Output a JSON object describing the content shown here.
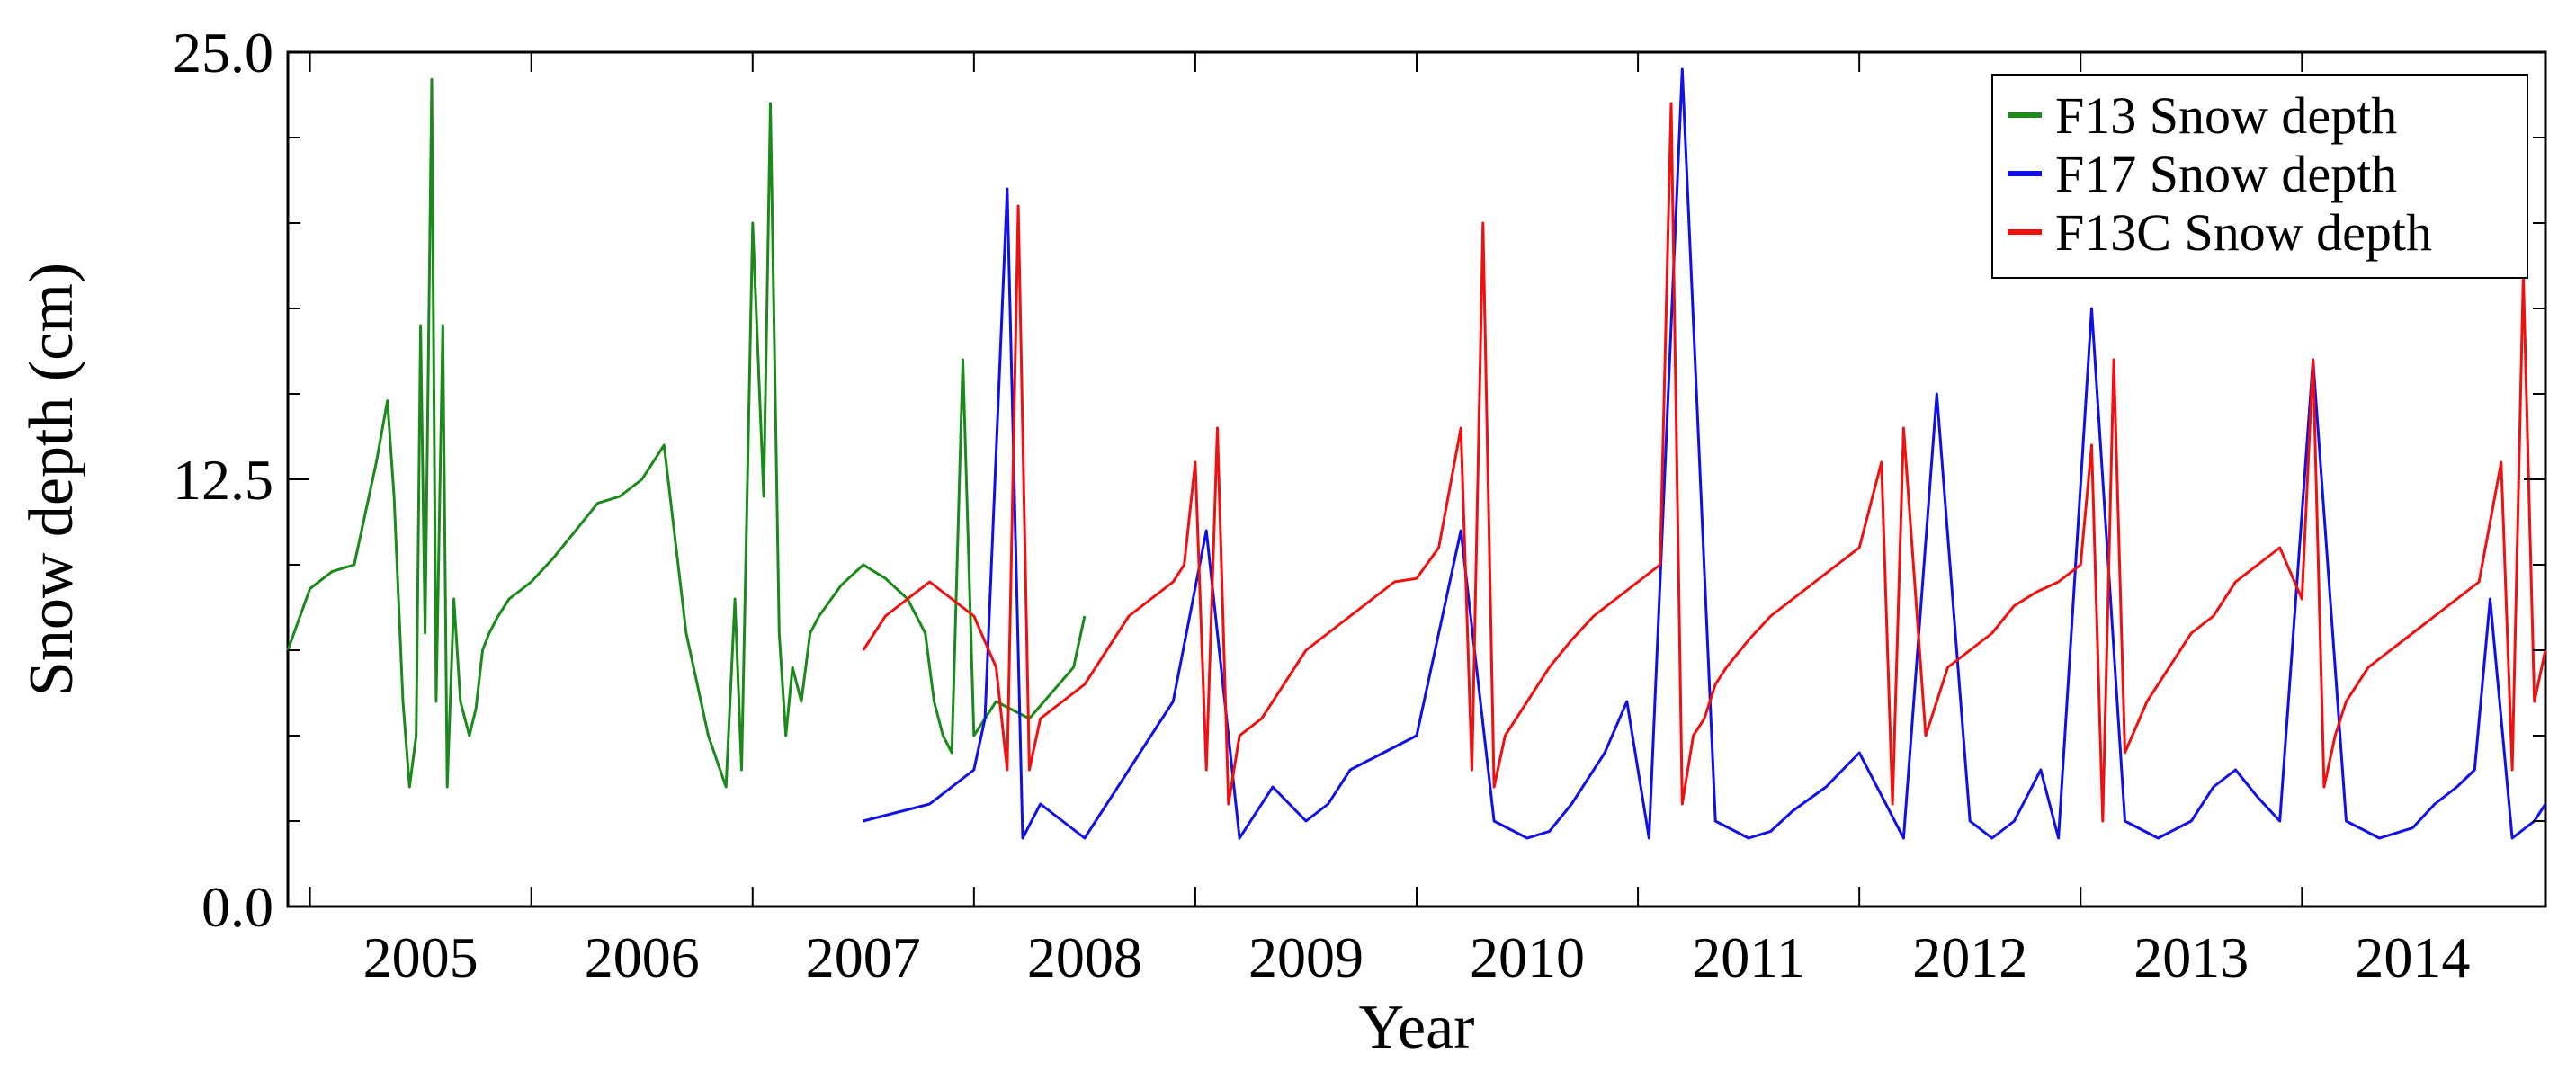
{
  "chart_data": {
    "type": "line",
    "title": "",
    "xlabel": "Year",
    "ylabel": "Snow depth (cm)",
    "xlim": [
      2004.4,
      2014.6
    ],
    "ylim": [
      0.0,
      25.0
    ],
    "y_ticks": [
      0.0,
      12.5,
      25.0
    ],
    "y_tick_labels": [
      "0.0",
      "12.5",
      "25.0"
    ],
    "x_tick_labels": [
      "2005",
      "2006",
      "2007",
      "2008",
      "2009",
      "2010",
      "2011",
      "2012",
      "2013",
      "2014"
    ],
    "x_tick_positions": [
      2005,
      2006,
      2007,
      2008,
      2009,
      2010,
      2011,
      2012,
      2013,
      2014
    ],
    "legend": {
      "position": "top-right",
      "entries": [
        "F13 Snow depth",
        "F17 Snow depth",
        "F13C Snow depth"
      ]
    },
    "series": [
      {
        "name": "F13 Snow depth",
        "color": "#1a8a1a",
        "x": [
          2004.4,
          2004.5,
          2004.6,
          2004.7,
          2004.8,
          2004.85,
          2004.88,
          2004.92,
          2004.95,
          2004.98,
          2005.0,
          2005.02,
          2005.05,
          2005.07,
          2005.1,
          2005.12,
          2005.15,
          2005.18,
          2005.22,
          2005.25,
          2005.28,
          2005.31,
          2005.35,
          2005.4,
          2005.5,
          2005.6,
          2005.7,
          2005.8,
          2005.9,
          2006.0,
          2006.1,
          2006.2,
          2006.3,
          2006.38,
          2006.42,
          2006.45,
          2006.5,
          2006.55,
          2006.58,
          2006.62,
          2006.65,
          2006.68,
          2006.72,
          2006.76,
          2006.8,
          2006.9,
          2007.0,
          2007.1,
          2007.2,
          2007.28,
          2007.32,
          2007.36,
          2007.4,
          2007.45,
          2007.5,
          2007.6,
          2007.75,
          2007.95,
          2008.0
        ],
        "y": [
          7.5,
          9.3,
          9.8,
          10.0,
          13.0,
          14.8,
          12.0,
          6.0,
          3.5,
          5.0,
          17.0,
          8.0,
          24.2,
          6.0,
          17.0,
          3.5,
          9.0,
          6.0,
          5.0,
          5.8,
          7.5,
          8.0,
          8.5,
          9.0,
          9.5,
          10.2,
          11.0,
          11.8,
          12.0,
          12.5,
          13.5,
          8.0,
          5.0,
          3.5,
          9.0,
          4.0,
          20.0,
          12.0,
          23.5,
          8.0,
          5.0,
          7.0,
          6.0,
          8.0,
          8.5,
          9.4,
          10.0,
          9.6,
          9.0,
          8.0,
          6.0,
          5.0,
          4.5,
          16.0,
          5.0,
          6.0,
          5.5,
          7.0,
          8.5
        ]
      },
      {
        "name": "F17 Snow depth",
        "color": "#1010e8",
        "x": [
          2007.0,
          2007.3,
          2007.5,
          2007.55,
          2007.65,
          2007.72,
          2007.8,
          2007.9,
          2008.0,
          2008.1,
          2008.2,
          2008.3,
          2008.4,
          2008.55,
          2008.7,
          2008.85,
          2009.0,
          2009.1,
          2009.2,
          2009.35,
          2009.5,
          2009.7,
          2009.85,
          2010.0,
          2010.1,
          2010.2,
          2010.25,
          2010.3,
          2010.35,
          2010.45,
          2010.55,
          2010.7,
          2010.85,
          2011.0,
          2011.1,
          2011.2,
          2011.35,
          2011.5,
          2011.7,
          2011.85,
          2012.0,
          2012.1,
          2012.2,
          2012.28,
          2012.32,
          2012.4,
          2012.55,
          2012.7,
          2012.85,
          2013.0,
          2013.1,
          2013.2,
          2013.3,
          2013.4,
          2013.55,
          2013.7,
          2013.85,
          2014.0,
          2014.1,
          2014.2,
          2014.28,
          2014.35,
          2014.45,
          2014.55,
          2014.6
        ],
        "y": [
          2.5,
          3.0,
          4.0,
          5.5,
          21.0,
          2.0,
          3.0,
          2.5,
          2.0,
          3.0,
          4.0,
          5.0,
          6.0,
          11.0,
          2.0,
          3.5,
          2.5,
          3.0,
          4.0,
          4.5,
          5.0,
          11.0,
          2.5,
          2.0,
          2.2,
          3.0,
          3.5,
          4.0,
          4.5,
          6.0,
          2.0,
          24.5,
          2.5,
          2.0,
          2.2,
          2.8,
          3.5,
          4.5,
          2.0,
          15.0,
          2.5,
          2.0,
          2.5,
          3.5,
          4.0,
          2.0,
          17.5,
          2.5,
          2.0,
          2.5,
          3.5,
          4.0,
          3.2,
          2.5,
          16.0,
          2.5,
          2.0,
          2.3,
          3.0,
          3.5,
          4.0,
          9.0,
          2.0,
          2.5,
          3.0
        ]
      },
      {
        "name": "F13C Snow depth",
        "color": "#f01010",
        "x": [
          2007.0,
          2007.1,
          2007.2,
          2007.3,
          2007.4,
          2007.5,
          2007.6,
          2007.65,
          2007.7,
          2007.75,
          2007.8,
          2007.9,
          2008.0,
          2008.1,
          2008.2,
          2008.3,
          2008.4,
          2008.45,
          2008.5,
          2008.55,
          2008.6,
          2008.65,
          2008.7,
          2008.8,
          2008.9,
          2009.0,
          2009.1,
          2009.2,
          2009.3,
          2009.4,
          2009.5,
          2009.6,
          2009.7,
          2009.75,
          2009.8,
          2009.85,
          2009.9,
          2010.0,
          2010.1,
          2010.2,
          2010.3,
          2010.4,
          2010.5,
          2010.6,
          2010.65,
          2010.7,
          2010.75,
          2010.8,
          2010.85,
          2010.9,
          2011.0,
          2011.1,
          2011.2,
          2011.3,
          2011.4,
          2011.5,
          2011.6,
          2011.65,
          2011.7,
          2011.8,
          2011.85,
          2011.9,
          2012.0,
          2012.1,
          2012.2,
          2012.3,
          2012.4,
          2012.5,
          2012.55,
          2012.6,
          2012.65,
          2012.7,
          2012.8,
          2012.9,
          2013.0,
          2013.1,
          2013.2,
          2013.3,
          2013.4,
          2013.5,
          2013.55,
          2013.6,
          2013.65,
          2013.7,
          2013.8,
          2013.9,
          2014.0,
          2014.1,
          2014.2,
          2014.3,
          2014.4,
          2014.45,
          2014.5,
          2014.55,
          2014.6
        ],
        "y": [
          7.5,
          8.5,
          9.0,
          9.5,
          9.0,
          8.5,
          7.0,
          4.0,
          20.5,
          4.0,
          5.5,
          6.0,
          6.5,
          7.5,
          8.5,
          9.0,
          9.5,
          10.0,
          13.0,
          4.0,
          14.0,
          3.0,
          5.0,
          5.5,
          6.5,
          7.5,
          8.0,
          8.5,
          9.0,
          9.5,
          9.6,
          10.5,
          14.0,
          4.0,
          20.0,
          3.5,
          5.0,
          6.0,
          7.0,
          7.8,
          8.5,
          9.0,
          9.5,
          10.0,
          23.5,
          3.0,
          5.0,
          5.5,
          6.5,
          7.0,
          7.8,
          8.5,
          9.0,
          9.5,
          10.0,
          10.5,
          13.0,
          3.0,
          14.0,
          5.0,
          6.0,
          7.0,
          7.5,
          8.0,
          8.8,
          9.2,
          9.5,
          10.0,
          13.5,
          2.5,
          16.0,
          4.5,
          6.0,
          7.0,
          8.0,
          8.5,
          9.5,
          10.0,
          10.5,
          9.0,
          16.0,
          3.5,
          5.0,
          6.0,
          7.0,
          7.5,
          8.0,
          8.5,
          9.0,
          9.5,
          13.0,
          4.0,
          18.5,
          6.0,
          7.5
        ]
      }
    ]
  }
}
